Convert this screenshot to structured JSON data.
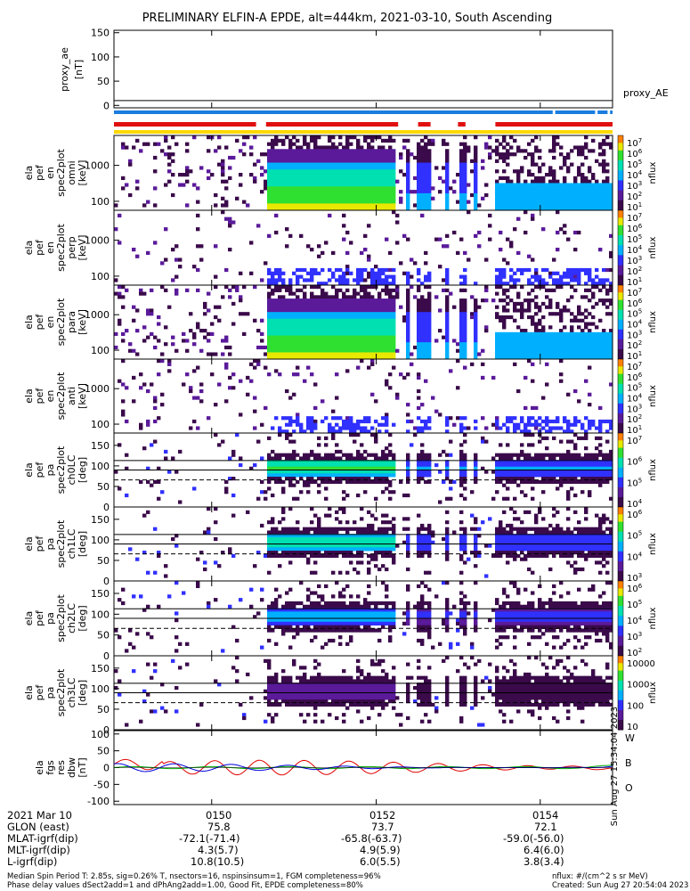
{
  "title": "PRELIMINARY ELFIN-A EPDE, alt=444km, 2021-03-10, South Ascending",
  "colors": {
    "status_blue": "#1a7de0",
    "status_red": "#e01010",
    "status_yellow": "#ffd800",
    "trace_red": "#e00000",
    "trace_green": "#00aa00",
    "trace_blue": "#0000dd"
  },
  "chart_data": [
    {
      "type": "line",
      "panel": "proxy_ae",
      "ylabel": [
        "proxy_ae",
        "[nT]"
      ],
      "ylim": [
        -5,
        155
      ],
      "yticks": [
        "150",
        "100",
        "50",
        "0"
      ],
      "series": [
        {
          "name": "proxy_AE",
          "approx_value": 10
        }
      ]
    },
    {
      "type": "heatmap",
      "panel": "en omni",
      "ylabel": [
        "ela",
        "pef",
        "en",
        "spec2plot",
        "omni",
        "[keV]"
      ],
      "yscale": "log",
      "yticks": [
        "1000",
        "100"
      ],
      "colorbar_ticks": [
        "10^7",
        "10^6",
        "10^5",
        "10^4",
        "10^3",
        "10^2",
        "10^1"
      ],
      "colorbar_label": "nflux"
    },
    {
      "type": "heatmap",
      "panel": "en perp",
      "ylabel": [
        "ela",
        "pef",
        "en",
        "spec2plot",
        "perp",
        "[keV]"
      ],
      "yscale": "log",
      "yticks": [
        "1000",
        "100"
      ],
      "colorbar_ticks": [
        "10^7",
        "10^6",
        "10^5",
        "10^4",
        "10^3",
        "10^2",
        "10^1"
      ],
      "colorbar_label": "nflux"
    },
    {
      "type": "heatmap",
      "panel": "en para",
      "ylabel": [
        "ela",
        "pef",
        "en",
        "spec2plot",
        "para",
        "[keV]"
      ],
      "yscale": "log",
      "yticks": [
        "1000",
        "100"
      ],
      "colorbar_ticks": [
        "10^7",
        "10^6",
        "10^5",
        "10^4",
        "10^3",
        "10^2",
        "10^1"
      ],
      "colorbar_label": "nflux"
    },
    {
      "type": "heatmap",
      "panel": "en anti",
      "ylabel": [
        "ela",
        "pef",
        "en",
        "spec2plot",
        "anti",
        "[keV]"
      ],
      "yscale": "log",
      "yticks": [
        "1000",
        "100"
      ],
      "colorbar_ticks": [
        "10^7",
        "10^6",
        "10^5",
        "10^4",
        "10^3",
        "10^2",
        "10^1"
      ],
      "colorbar_label": "nflux"
    },
    {
      "type": "heatmap",
      "panel": "ch0LC",
      "ylabel": [
        "ela",
        "pef",
        "pa",
        "spec2plot",
        "ch0LC",
        "[deg]"
      ],
      "ylim": [
        0,
        180
      ],
      "yticks": [
        "150",
        "100",
        "50",
        "0"
      ],
      "colorbar_ticks": [
        "10^7",
        "10^6",
        "10^5",
        "10^4"
      ],
      "colorbar_label": "nflux"
    },
    {
      "type": "heatmap",
      "panel": "ch1LC",
      "ylabel": [
        "ela",
        "pef",
        "pa",
        "spec2plot",
        "ch1LC",
        "[deg]"
      ],
      "ylim": [
        0,
        180
      ],
      "yticks": [
        "150",
        "100",
        "50",
        "0"
      ],
      "colorbar_ticks": [
        "10^6",
        "10^5",
        "10^4",
        "10^3"
      ],
      "colorbar_label": "nflux"
    },
    {
      "type": "heatmap",
      "panel": "ch2LC",
      "ylabel": [
        "ela",
        "pef",
        "pa",
        "spec2plot",
        "ch2LC",
        "[deg]"
      ],
      "ylim": [
        0,
        180
      ],
      "yticks": [
        "150",
        "100",
        "50",
        "0"
      ],
      "colorbar_ticks": [
        "10^6",
        "10^5",
        "10^4",
        "10^3",
        "10^2"
      ],
      "colorbar_label": "nflux"
    },
    {
      "type": "heatmap",
      "panel": "ch3LC",
      "ylabel": [
        "ela",
        "pef",
        "pa",
        "spec2plot",
        "ch3LC",
        "[deg]"
      ],
      "ylim": [
        0,
        180
      ],
      "yticks": [
        "150",
        "100",
        "50",
        "0"
      ],
      "colorbar_ticks": [
        "10000",
        "1000",
        "100",
        "10"
      ],
      "colorbar_label": "nflux"
    },
    {
      "type": "line",
      "panel": "fgs",
      "ylabel": [
        "ela",
        "fgs",
        "res",
        "dbw",
        "[nT]"
      ],
      "ylim": [
        -110,
        110
      ],
      "yticks": [
        "100",
        "50",
        "0",
        "-50",
        "-100"
      ],
      "series": [
        {
          "name": "W"
        },
        {
          "name": "B"
        },
        {
          "name": "O"
        }
      ],
      "timestamp": "Sun Aug 27 15:34:04 2023"
    }
  ],
  "time_axis": {
    "labels": [
      "2021 Mar 10",
      "0150",
      "0152",
      "0154"
    ],
    "rows": [
      {
        "name": "GLON (east)",
        "values": [
          "75.8",
          "73.7",
          "72.1"
        ]
      },
      {
        "name": "MLAT-igrf(dip)",
        "values": [
          "-72.1(-71.4)",
          "-65.8(-63.7)",
          "-59.0(-56.0)"
        ]
      },
      {
        "name": "MLT-igrf(dip)",
        "values": [
          "4.3(5.7)",
          "4.9(5.9)",
          "6.4(6.0)"
        ]
      },
      {
        "name": "L-igrf(dip)",
        "values": [
          "10.8(10.5)",
          "6.0(5.5)",
          "3.8(3.4)"
        ]
      }
    ]
  },
  "footer": {
    "line1": "Median Spin Period T: 2.85s, sig=0.26% T, nsectors=16, nspinsinsum=1, FGM completeness=96%",
    "line2": "Phase delay values dSect2add=1 and dPhAng2add=1.00, Good Fit, EPDE completeness=80%",
    "units": "nflux: #/(cm^2 s sr MeV)",
    "created": "Created: Sun Aug 27 20:54:04 2023"
  }
}
